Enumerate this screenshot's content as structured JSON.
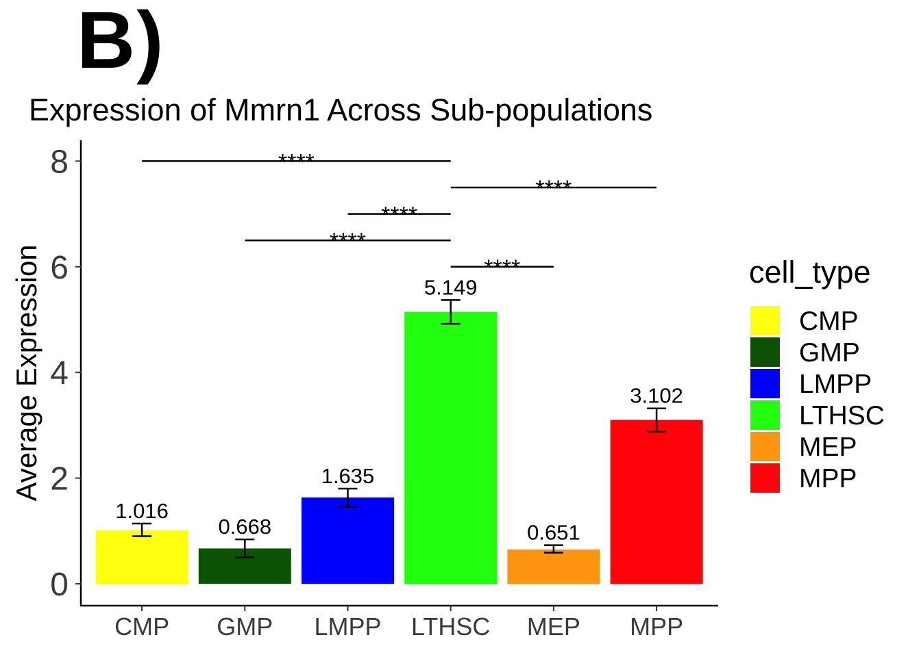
{
  "panel_label": "B)",
  "chart_data": {
    "type": "bar",
    "title": "Expression of Mmrn1 Across Sub-populations",
    "xlabel": "",
    "ylabel": "Average Expression",
    "ylim": [
      0,
      8
    ],
    "yticks": [
      0,
      2,
      4,
      6,
      8
    ],
    "categories": [
      "CMP",
      "GMP",
      "LMPP",
      "LTHSC",
      "MEP",
      "MPP"
    ],
    "values": [
      1.016,
      0.668,
      1.635,
      5.149,
      0.651,
      3.102
    ],
    "value_labels": [
      "1.016",
      "0.668",
      "1.635",
      "5.149",
      "0.651",
      "3.102"
    ],
    "error_low": [
      0.9,
      0.5,
      1.46,
      4.92,
      0.59,
      2.88
    ],
    "error_high": [
      1.14,
      0.84,
      1.8,
      5.37,
      0.73,
      3.32
    ],
    "colors": [
      "#ffff0f",
      "#0b5202",
      "#0000ff",
      "#22ff0e",
      "#ff9410",
      "#ff020a"
    ],
    "grid": false,
    "legend": {
      "title": "cell_type",
      "position": "right",
      "entries": [
        "CMP",
        "GMP",
        "LMPP",
        "LTHSC",
        "MEP",
        "MPP"
      ]
    },
    "significance": [
      {
        "from": "CMP",
        "to": "LTHSC",
        "y": 8.0,
        "label": "****"
      },
      {
        "from": "LTHSC",
        "to": "MPP",
        "y": 7.5,
        "label": "****"
      },
      {
        "from": "LMPP",
        "to": "LTHSC",
        "y": 7.0,
        "label": "****"
      },
      {
        "from": "GMP",
        "to": "LTHSC",
        "y": 6.5,
        "label": "****"
      },
      {
        "from": "LTHSC",
        "to": "MEP",
        "y": 6.0,
        "label": "****"
      }
    ]
  }
}
